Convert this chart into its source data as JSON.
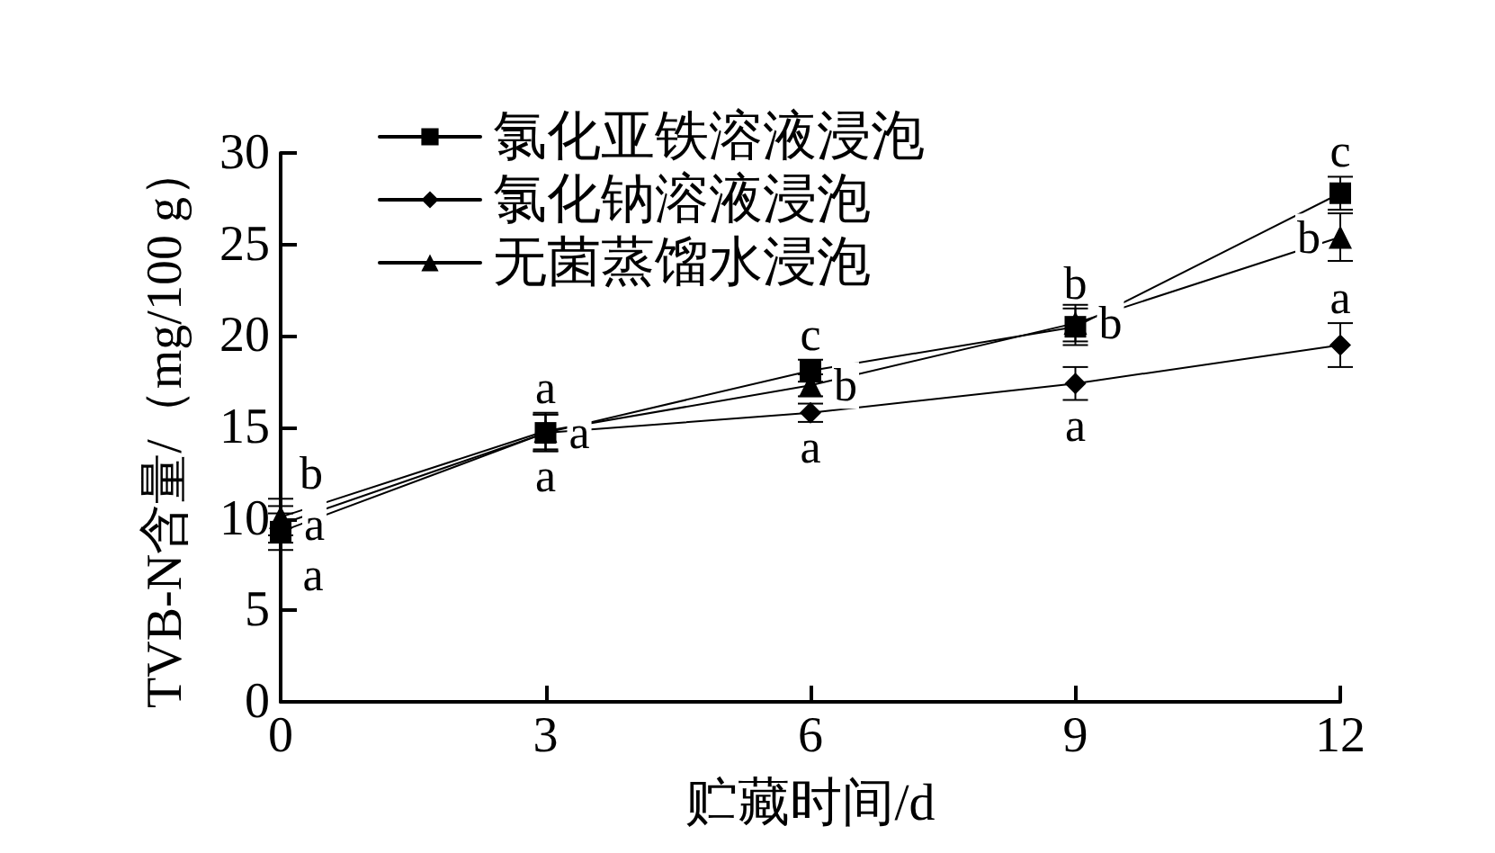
{
  "chart_data": {
    "type": "line",
    "xlabel": "贮藏时间/d",
    "ylabel": "TVB-N含量/（mg/100 g）",
    "x": [
      0,
      3,
      6,
      9,
      12
    ],
    "series": [
      {
        "name": "氯化亚铁溶液浸泡",
        "color": "#000000",
        "marker": "square",
        "values": [
          9.3,
          14.7,
          18.1,
          20.5,
          27.8
        ],
        "errors": [
          1.0,
          1.0,
          0.6,
          1.0,
          0.9
        ]
      },
      {
        "name": "氯化钠溶液浸泡",
        "color": "#000000",
        "marker": "diamond",
        "values": [
          9.7,
          14.7,
          15.8,
          17.4,
          19.5
        ],
        "errors": [
          1.0,
          1.0,
          0.5,
          0.9,
          1.2
        ]
      },
      {
        "name": "无菌蒸馏水浸泡",
        "color": "#000000",
        "marker": "triangle",
        "values": [
          10.1,
          14.8,
          17.3,
          20.7,
          25.4
        ],
        "errors": [
          1.0,
          1.0,
          0.6,
          1.0,
          1.3
        ]
      }
    ],
    "xlim": [
      0,
      12
    ],
    "xticks": [
      0,
      3,
      6,
      9,
      12
    ],
    "ylim": [
      0,
      30
    ],
    "yticks": [
      0,
      5,
      10,
      15,
      20,
      25,
      30
    ],
    "legend": "top left",
    "line_style": "solid",
    "annotations": [
      {
        "text": "b",
        "x": 0,
        "y": 11.1
      },
      {
        "text": "a",
        "x": 0,
        "y": 9.7
      },
      {
        "text": "a",
        "x": 0,
        "y": 8.3
      },
      {
        "text": "a",
        "x": 3,
        "y": 15.8
      },
      {
        "text": "a",
        "x": 3,
        "y": 14.7
      },
      {
        "text": "a",
        "x": 3,
        "y": 13.7
      },
      {
        "text": "c",
        "x": 6,
        "y": 18.7
      },
      {
        "text": "b",
        "x": 6,
        "y": 17.3
      },
      {
        "text": "a",
        "x": 6,
        "y": 15.3
      },
      {
        "text": "b",
        "x": 9,
        "y": 21.5
      },
      {
        "text": "b",
        "x": 9,
        "y": 20.7
      },
      {
        "text": "a",
        "x": 9,
        "y": 16.5
      },
      {
        "text": "c",
        "x": 12,
        "y": 28.7
      },
      {
        "text": "b",
        "x": 12,
        "y": 25.4
      },
      {
        "text": "a",
        "x": 12,
        "y": 20.7
      }
    ]
  }
}
